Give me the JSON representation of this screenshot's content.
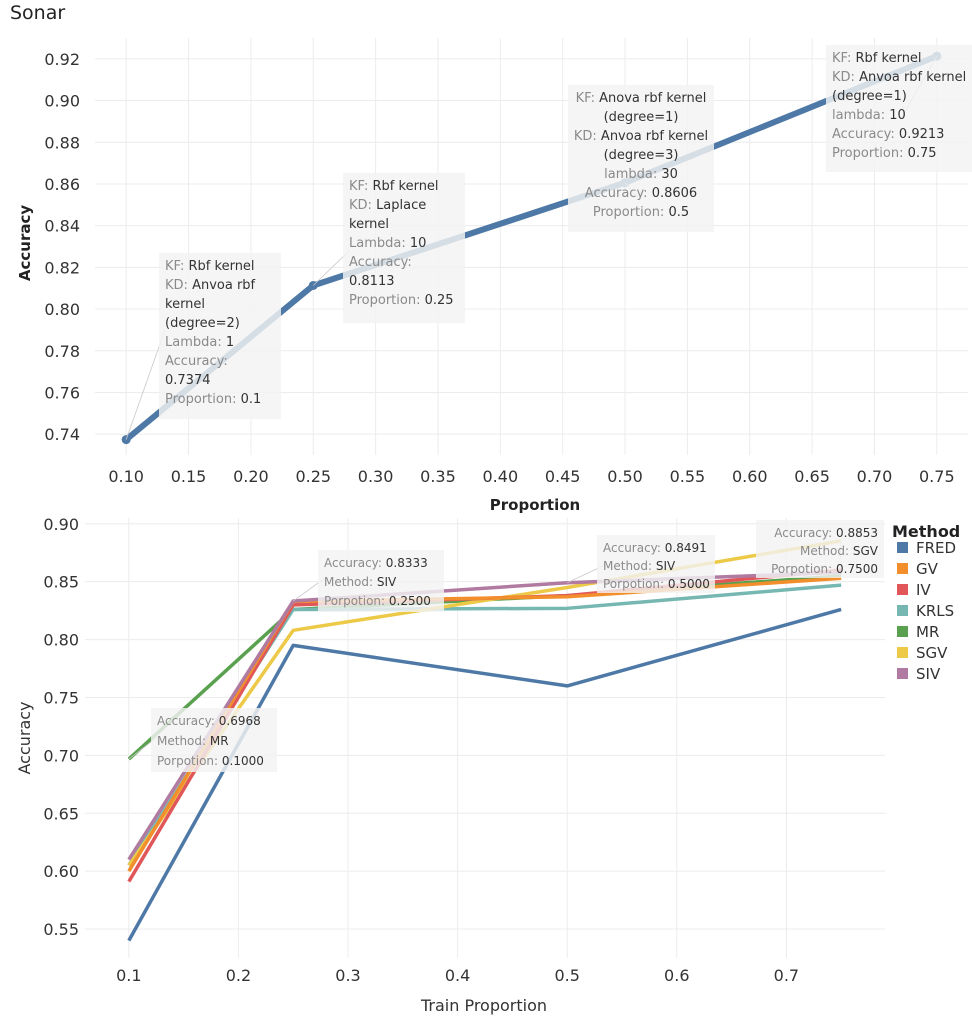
{
  "page_title": "Sonar",
  "chart_data": [
    {
      "type": "line",
      "title": "",
      "xlabel": "Proportion",
      "ylabel": "Accuracy",
      "xlim": [
        0.075,
        0.775
      ],
      "ylim": [
        0.73,
        0.93
      ],
      "xticks": [
        "0.10",
        "0.15",
        "0.20",
        "0.25",
        "0.30",
        "0.35",
        "0.40",
        "0.45",
        "0.50",
        "0.55",
        "0.60",
        "0.65",
        "0.70",
        "0.75"
      ],
      "yticks": [
        "0.74",
        "0.76",
        "0.78",
        "0.80",
        "0.82",
        "0.84",
        "0.86",
        "0.88",
        "0.90",
        "0.92"
      ],
      "grid": true,
      "color": "#4e79a7",
      "x": [
        0.1,
        0.25,
        0.5,
        0.75
      ],
      "values": [
        0.7374,
        0.8113,
        0.8606,
        0.9213
      ],
      "annotations": [
        {
          "lines": [
            [
              [
                "KF: ",
                "l"
              ],
              [
                "Rbf kernel",
                "v"
              ]
            ],
            [
              [
                "KD: ",
                "l"
              ],
              [
                "Anvoa rbf",
                "v"
              ]
            ],
            [
              [
                "kernel",
                "v"
              ]
            ],
            [
              [
                "(degree=2)",
                "v"
              ]
            ],
            [
              [
                "Lambda: ",
                "l"
              ],
              [
                "1",
                "v"
              ]
            ],
            [
              [
                "Accuracy:",
                "l"
              ]
            ],
            [
              [
                "0.7374",
                "v"
              ]
            ],
            [
              [
                "Proportion: ",
                "l"
              ],
              [
                "0.1",
                "v"
              ]
            ]
          ]
        },
        {
          "lines": [
            [
              [
                "KF: ",
                "l"
              ],
              [
                "Rbf kernel",
                "v"
              ]
            ],
            [
              [
                "KD: ",
                "l"
              ],
              [
                "Laplace",
                "v"
              ]
            ],
            [
              [
                "kernel",
                "v"
              ]
            ],
            [
              [
                "Lambda: ",
                "l"
              ],
              [
                "10",
                "v"
              ]
            ],
            [
              [
                "Accuracy:",
                "l"
              ]
            ],
            [
              [
                "0.8113",
                "v"
              ]
            ],
            [
              [
                "Proportion: ",
                "l"
              ],
              [
                "0.25",
                "v"
              ]
            ]
          ]
        },
        {
          "lines": [
            [
              [
                "KF: ",
                "l"
              ],
              [
                "Anova rbf kernel",
                "v"
              ]
            ],
            [
              [
                "(degree=1)",
                "v"
              ]
            ],
            [
              [
                "KD: ",
                "l"
              ],
              [
                "Anvoa rbf kernel",
                "v"
              ]
            ],
            [
              [
                "(degree=3)",
                "v"
              ]
            ],
            [
              [
                "lambda: ",
                "l"
              ],
              [
                "30",
                "v"
              ]
            ],
            [
              [
                "Accuracy: ",
                "l"
              ],
              [
                "0.8606",
                "v"
              ]
            ],
            [
              [
                "Proportion: ",
                "l"
              ],
              [
                "0.5",
                "v"
              ]
            ]
          ]
        },
        {
          "lines": [
            [
              [
                "KF: ",
                "l"
              ],
              [
                "Rbf kernel",
                "v"
              ]
            ],
            [
              [
                "KD: ",
                "l"
              ],
              [
                "Anvoa rbf kernel",
                "v"
              ]
            ],
            [
              [
                "(degree=1)",
                "v"
              ]
            ],
            [
              [
                "lambda: ",
                "l"
              ],
              [
                "10",
                "v"
              ]
            ],
            [
              [
                "Accuracy: ",
                "l"
              ],
              [
                "0.9213",
                "v"
              ]
            ],
            [
              [
                "Proportion: ",
                "l"
              ],
              [
                "0.75",
                "v"
              ]
            ]
          ]
        }
      ]
    },
    {
      "type": "line",
      "title": "",
      "xlabel": "Train Proportion",
      "ylabel": "Accuracy",
      "xlim": [
        0.06,
        0.79
      ],
      "ylim": [
        0.525,
        0.905
      ],
      "xticks": [
        "0.1",
        "0.2",
        "0.3",
        "0.4",
        "0.5",
        "0.6",
        "0.7"
      ],
      "yticks": [
        "0.55",
        "0.60",
        "0.65",
        "0.70",
        "0.75",
        "0.80",
        "0.85",
        "0.90"
      ],
      "grid": true,
      "legend": {
        "title": "Method",
        "position": "right"
      },
      "x": [
        0.1,
        0.25,
        0.5,
        0.75
      ],
      "series": [
        {
          "name": "FRED",
          "color": "#4e79a7",
          "values": [
            0.54,
            0.795,
            0.76,
            0.826
          ]
        },
        {
          "name": "GV",
          "color": "#f28e2b",
          "values": [
            0.6,
            0.833,
            0.837,
            0.853
          ]
        },
        {
          "name": "IV",
          "color": "#e15759",
          "values": [
            0.591,
            0.83,
            0.838,
            0.86
          ]
        },
        {
          "name": "KRLS",
          "color": "#76b7b2",
          "values": [
            0.605,
            0.826,
            0.827,
            0.847
          ]
        },
        {
          "name": "MR",
          "color": "#59a14f",
          "values": [
            0.6968,
            0.826,
            0.838,
            0.855
          ]
        },
        {
          "name": "SGV",
          "color": "#edc948",
          "values": [
            0.605,
            0.808,
            0.845,
            0.8853
          ]
        },
        {
          "name": "SIV",
          "color": "#b07aa1",
          "values": [
            0.61,
            0.8333,
            0.8491,
            0.858
          ]
        }
      ],
      "annotations": [
        {
          "lines": [
            [
              [
                "Accuracy: ",
                "l"
              ],
              [
                "0.6968",
                "v"
              ]
            ],
            [
              [
                "Method: ",
                "l"
              ],
              [
                "MR",
                "v"
              ]
            ],
            [
              [
                "Porpotion: ",
                "l"
              ],
              [
                "0.1000",
                "v"
              ]
            ]
          ]
        },
        {
          "lines": [
            [
              [
                "Accuracy: ",
                "l"
              ],
              [
                "0.8333",
                "v"
              ]
            ],
            [
              [
                "Method: ",
                "l"
              ],
              [
                "SIV",
                "v"
              ]
            ],
            [
              [
                "Porpotion: ",
                "l"
              ],
              [
                "0.2500",
                "v"
              ]
            ]
          ]
        },
        {
          "lines": [
            [
              [
                "Accuracy: ",
                "l"
              ],
              [
                "0.8491",
                "v"
              ]
            ],
            [
              [
                "Method: ",
                "l"
              ],
              [
                "SIV",
                "v"
              ]
            ],
            [
              [
                "Porpotion: ",
                "l"
              ],
              [
                "0.5000",
                "v"
              ]
            ]
          ]
        },
        {
          "lines": [
            [
              [
                "Accuracy: ",
                "l"
              ],
              [
                "0.8853",
                "v"
              ]
            ],
            [
              [
                "Method: ",
                "l"
              ],
              [
                "SGV",
                "v"
              ]
            ],
            [
              [
                "Porpotion: ",
                "l"
              ],
              [
                "0.7500",
                "v"
              ]
            ]
          ]
        }
      ]
    }
  ]
}
